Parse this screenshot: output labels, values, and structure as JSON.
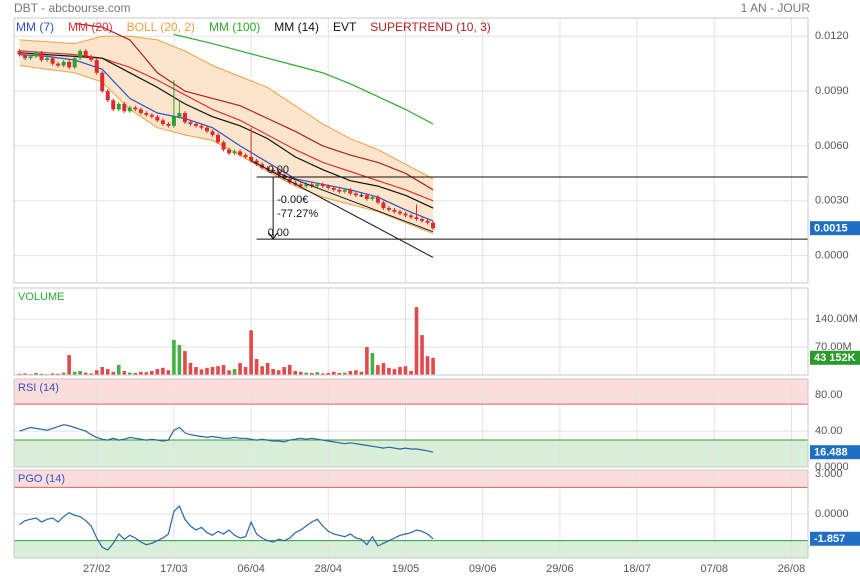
{
  "header": {
    "left": "DBT - abcbourse.com",
    "right": "1 AN - JOUR"
  },
  "x_axis": {
    "xlim": [
      -1,
      143
    ],
    "xticks": [
      {
        "value": 14,
        "label": "27/02"
      },
      {
        "value": 28,
        "label": "17/03"
      },
      {
        "value": 42,
        "label": "06/04"
      },
      {
        "value": 56,
        "label": "28/04"
      },
      {
        "value": 70,
        "label": "19/05"
      },
      {
        "value": 84,
        "label": "09/06"
      },
      {
        "value": 98,
        "label": "29/06"
      },
      {
        "value": 112,
        "label": "18/07"
      },
      {
        "value": 126,
        "label": "07/08"
      },
      {
        "value": 140,
        "label": "26/08"
      }
    ]
  },
  "chart_data": [
    {
      "type": "candlestick",
      "up_color": "#2ea02e",
      "down_color": "#dd2a2a",
      "ylim": [
        -0.0015,
        0.013
      ],
      "yticks": [
        {
          "value": 0,
          "label": "0.0000"
        },
        {
          "value": 0.003,
          "label": "0.0030"
        },
        {
          "value": 0.006,
          "label": "0.0060"
        },
        {
          "value": 0.009,
          "label": "0.0090"
        },
        {
          "value": 0.012,
          "label": "0.0120"
        }
      ],
      "last": {
        "value": 0.0015,
        "label": "0.0015"
      },
      "last_color": "#1f6fc4",
      "open": [
        0.0112,
        0.011,
        0.0108,
        0.0109,
        0.0111,
        0.0107,
        0.0108,
        0.0105,
        0.0104,
        0.0106,
        0.0103,
        0.0108,
        0.0112,
        0.0109,
        0.0107,
        0.01,
        0.009,
        0.0085,
        0.008,
        0.0083,
        0.0079,
        0.0081,
        0.008,
        0.0078,
        0.0077,
        0.0076,
        0.0074,
        0.0072,
        0.0071,
        0.0076,
        0.0078,
        0.0073,
        0.0072,
        0.0071,
        0.007,
        0.0068,
        0.0066,
        0.0062,
        0.0058,
        0.0056,
        0.0057,
        0.0055,
        0.0054,
        0.0052,
        0.005,
        0.0048,
        0.0047,
        0.0046,
        0.0044,
        0.0042,
        0.004,
        0.0039,
        0.0038,
        0.0039,
        0.0038,
        0.0039,
        0.0038,
        0.0037,
        0.0036,
        0.0035,
        0.0036,
        0.0034,
        0.0033,
        0.0033,
        0.0031,
        0.0032,
        0.0029,
        0.0026,
        0.0025,
        0.0024,
        0.0023,
        0.0022,
        0.0021,
        0.002,
        0.0019,
        0.0018
      ],
      "high": [
        0.0113,
        0.0111,
        0.011,
        0.0112,
        0.0112,
        0.0109,
        0.0109,
        0.0106,
        0.0107,
        0.0107,
        0.0109,
        0.0113,
        0.0113,
        0.011,
        0.0108,
        0.0101,
        0.0091,
        0.0086,
        0.0084,
        0.0084,
        0.0082,
        0.0082,
        0.0081,
        0.0079,
        0.0078,
        0.0077,
        0.0075,
        0.0073,
        0.0096,
        0.0085,
        0.0079,
        0.0074,
        0.0073,
        0.0072,
        0.0071,
        0.0069,
        0.0067,
        0.0063,
        0.0059,
        0.0058,
        0.0058,
        0.0056,
        0.007,
        0.0053,
        0.0051,
        0.0049,
        0.0048,
        0.0047,
        0.0045,
        0.0043,
        0.0041,
        0.004,
        0.004,
        0.004,
        0.004,
        0.004,
        0.0039,
        0.0038,
        0.0037,
        0.0037,
        0.0037,
        0.0035,
        0.0034,
        0.0034,
        0.0033,
        0.0033,
        0.003,
        0.0027,
        0.0026,
        0.0025,
        0.0024,
        0.0023,
        0.0028,
        0.0021,
        0.002,
        0.0019
      ],
      "low": [
        0.0109,
        0.0107,
        0.0107,
        0.0108,
        0.0106,
        0.0106,
        0.0104,
        0.0103,
        0.0103,
        0.0102,
        0.0102,
        0.0107,
        0.0108,
        0.0106,
        0.0099,
        0.0089,
        0.0084,
        0.0079,
        0.0079,
        0.0078,
        0.0078,
        0.0079,
        0.0077,
        0.0076,
        0.0075,
        0.0073,
        0.0071,
        0.007,
        0.007,
        0.0075,
        0.0072,
        0.0071,
        0.007,
        0.0069,
        0.0067,
        0.0065,
        0.0061,
        0.0057,
        0.0055,
        0.0055,
        0.0054,
        0.0053,
        0.0051,
        0.0049,
        0.0047,
        0.0046,
        0.0045,
        0.0043,
        0.0041,
        0.0039,
        0.0038,
        0.0037,
        0.0037,
        0.0037,
        0.0037,
        0.0037,
        0.0036,
        0.0035,
        0.0034,
        0.0034,
        0.0033,
        0.0032,
        0.0032,
        0.003,
        0.003,
        0.0028,
        0.0025,
        0.0024,
        0.0023,
        0.0022,
        0.0021,
        0.002,
        0.0019,
        0.0018,
        0.0017,
        0.0014
      ],
      "close": [
        0.011,
        0.0108,
        0.0109,
        0.0111,
        0.0107,
        0.0108,
        0.0105,
        0.0104,
        0.0106,
        0.0103,
        0.0108,
        0.0112,
        0.0109,
        0.0107,
        0.01,
        0.009,
        0.0085,
        0.008,
        0.0083,
        0.0079,
        0.0081,
        0.008,
        0.0078,
        0.0077,
        0.0076,
        0.0074,
        0.0072,
        0.0071,
        0.0076,
        0.0078,
        0.0073,
        0.0072,
        0.0071,
        0.007,
        0.0068,
        0.0066,
        0.0062,
        0.0058,
        0.0056,
        0.0057,
        0.0055,
        0.0054,
        0.0052,
        0.005,
        0.0048,
        0.0047,
        0.0046,
        0.0044,
        0.0042,
        0.004,
        0.0039,
        0.0038,
        0.0039,
        0.0038,
        0.0039,
        0.0038,
        0.0037,
        0.0036,
        0.0035,
        0.0036,
        0.0034,
        0.0033,
        0.0033,
        0.0031,
        0.0032,
        0.0029,
        0.0026,
        0.0025,
        0.0024,
        0.0023,
        0.0022,
        0.0021,
        0.002,
        0.0019,
        0.0018,
        0.0015
      ],
      "series": [
        {
          "name": "MM (7)",
          "color": "#3050c8",
          "x": [
            0,
            5,
            10,
            15,
            20,
            25,
            30,
            35,
            40,
            45,
            50,
            55,
            60,
            65,
            70,
            75
          ],
          "values": [
            0.011,
            0.0109,
            0.0107,
            0.0102,
            0.0086,
            0.0078,
            0.0075,
            0.007,
            0.006,
            0.0051,
            0.0042,
            0.0039,
            0.0036,
            0.0032,
            0.0025,
            0.0019
          ]
        },
        {
          "name": "MM (20)",
          "color": "#e03434",
          "x": [
            0,
            5,
            10,
            15,
            20,
            25,
            30,
            35,
            40,
            45,
            50,
            55,
            60,
            65,
            70,
            75
          ],
          "values": [
            0.0112,
            0.0111,
            0.011,
            0.0108,
            0.0103,
            0.0096,
            0.0088,
            0.008,
            0.0074,
            0.0066,
            0.0058,
            0.0051,
            0.0046,
            0.0041,
            0.0036,
            0.003
          ]
        },
        {
          "name": "BOLL (20, 2)",
          "color": "#f0a040",
          "fill": "#fde5cc",
          "x": [
            0,
            5,
            10,
            15,
            20,
            25,
            30,
            35,
            40,
            45,
            50,
            55,
            60,
            65,
            70,
            75
          ],
          "upper": [
            0.0118,
            0.0117,
            0.0116,
            0.012,
            0.012,
            0.0118,
            0.0112,
            0.0104,
            0.0098,
            0.0092,
            0.0082,
            0.0072,
            0.0064,
            0.0058,
            0.005,
            0.0042
          ],
          "lower": [
            0.0104,
            0.0102,
            0.01,
            0.0095,
            0.008,
            0.007,
            0.0066,
            0.0063,
            0.0055,
            0.0046,
            0.0038,
            0.0032,
            0.0028,
            0.0024,
            0.0018,
            0.0012
          ]
        },
        {
          "name": "MM (100)",
          "color": "#2aaa2a",
          "x": [
            28,
            35,
            40,
            45,
            50,
            55,
            60,
            65,
            70,
            75
          ],
          "values": [
            0.0121,
            0.0116,
            0.0112,
            0.0108,
            0.0104,
            0.01,
            0.0094,
            0.0087,
            0.008,
            0.0072
          ]
        },
        {
          "name": "MM (14)",
          "color": "#111111",
          "x": [
            0,
            5,
            10,
            15,
            20,
            25,
            30,
            35,
            40,
            45,
            50,
            55,
            60,
            65,
            70,
            75
          ],
          "values": [
            0.0111,
            0.011,
            0.0109,
            0.0108,
            0.01,
            0.0092,
            0.0083,
            0.0076,
            0.0071,
            0.0064,
            0.0054,
            0.0047,
            0.0041,
            0.0038,
            0.0033,
            0.0026
          ]
        },
        {
          "name": "EVT",
          "color": "#111111",
          "levels": [
            0.0043,
            0.0009
          ],
          "lines": [
            {
              "x": [
                42,
                75
              ],
              "y": [
                0.0052,
                -0.0001
              ]
            },
            {
              "x": [
                47,
                75
              ],
              "y": [
                0.0045,
                0.0013
              ]
            }
          ],
          "texts": [
            "0.00",
            "-0.00€",
            "-77.27%",
            "0.00"
          ]
        },
        {
          "name": "SUPERTREND (10, 3)",
          "color": "#b02020",
          "x": [
            10,
            15,
            20,
            25,
            30,
            35,
            40,
            45,
            50,
            55,
            60,
            65,
            70,
            75
          ],
          "values": [
            0.0127,
            0.0125,
            0.0118,
            0.01,
            0.009,
            0.0086,
            0.0082,
            0.0075,
            0.0068,
            0.006,
            0.0055,
            0.0051,
            0.0045,
            0.0036
          ]
        }
      ]
    },
    {
      "type": "bar",
      "title": "VOLUME",
      "title_color": "#2aaa2a",
      "up_color": "#44b044",
      "down_color": "#e24a4a",
      "ylim": [
        0,
        218
      ],
      "yticks": [
        {
          "value": 70,
          "label": "70.00M"
        },
        {
          "value": 140,
          "label": "140.00M"
        }
      ],
      "last": {
        "value": 43.152,
        "label": "43 152K"
      },
      "last_color": "#2a9a2a",
      "values": [
        3,
        4,
        2,
        5,
        3,
        2,
        4,
        3,
        6,
        50,
        8,
        10,
        6,
        4,
        12,
        20,
        15,
        8,
        25,
        10,
        6,
        5,
        8,
        7,
        10,
        15,
        18,
        12,
        88,
        75,
        60,
        30,
        20,
        14,
        18,
        20,
        22,
        25,
        12,
        15,
        30,
        20,
        112,
        40,
        22,
        30,
        15,
        12,
        20,
        25,
        10,
        8,
        6,
        5,
        7,
        4,
        5,
        8,
        5,
        6,
        10,
        12,
        8,
        70,
        55,
        25,
        30,
        18,
        15,
        20,
        22,
        10,
        170,
        100,
        47,
        43.152
      ]
    },
    {
      "type": "line",
      "title": "RSI (14)",
      "title_color": "#3050c8",
      "color": "#2468a8",
      "zones": [
        30,
        70
      ],
      "ylim": [
        0,
        98
      ],
      "yticks": [
        {
          "value": 0,
          "label": "0.0000"
        },
        {
          "value": 40,
          "label": "40.00"
        },
        {
          "value": 80,
          "label": "80.00"
        }
      ],
      "last": {
        "value": 16.488,
        "label": "16.488"
      },
      "last_color": "#1f6fc4",
      "values": [
        40,
        42,
        44,
        43,
        42,
        41,
        43,
        45,
        47,
        46,
        44,
        42,
        40,
        36,
        33,
        31,
        30,
        32,
        30,
        31,
        33,
        32,
        31,
        30,
        31,
        30,
        29,
        30,
        41,
        44,
        38,
        36,
        35,
        34,
        33,
        34,
        33,
        32,
        32,
        33,
        32,
        32,
        31,
        30,
        31,
        30,
        29,
        29,
        28,
        30,
        31,
        32,
        31,
        32,
        31,
        30,
        29,
        28,
        27,
        26,
        27,
        26,
        25,
        24,
        23,
        22,
        21,
        22,
        21,
        20,
        21,
        20,
        20,
        19,
        18,
        16.488
      ]
    },
    {
      "type": "line",
      "title": "PGO (14)",
      "title_color": "#3050c8",
      "color": "#2468a8",
      "zones": [
        -2,
        2
      ],
      "ylim": [
        -3.3,
        3.3
      ],
      "yticks": [
        {
          "value": 0,
          "label": "0.0000"
        },
        {
          "value": 3,
          "label": "3.000"
        }
      ],
      "last": {
        "value": -1.857,
        "label": "-1.857"
      },
      "last_color": "#1f6fc4",
      "values": [
        -0.8,
        -0.5,
        -0.4,
        -0.3,
        -0.6,
        -0.4,
        -0.3,
        -0.6,
        -0.2,
        0.1,
        -0.1,
        -0.2,
        -0.5,
        -0.9,
        -1.8,
        -2.5,
        -2.7,
        -2.2,
        -1.5,
        -1.9,
        -1.6,
        -1.8,
        -2.1,
        -2.3,
        -2.2,
        -2.0,
        -1.8,
        -1.5,
        0.2,
        0.6,
        -0.4,
        -0.9,
        -1.2,
        -1.0,
        -1.4,
        -1.6,
        -1.3,
        -1.5,
        -1.2,
        -1.6,
        -1.8,
        -1.7,
        -0.6,
        -1.5,
        -1.8,
        -2.0,
        -2.1,
        -1.9,
        -2.0,
        -1.8,
        -1.4,
        -1.2,
        -0.9,
        -0.6,
        -0.4,
        -0.9,
        -1.3,
        -1.5,
        -1.6,
        -1.7,
        -1.5,
        -1.8,
        -1.9,
        -2.3,
        -1.7,
        -2.4,
        -2.2,
        -2.0,
        -1.8,
        -1.6,
        -1.5,
        -1.4,
        -1.2,
        -1.3,
        -1.5,
        -1.857
      ]
    }
  ]
}
